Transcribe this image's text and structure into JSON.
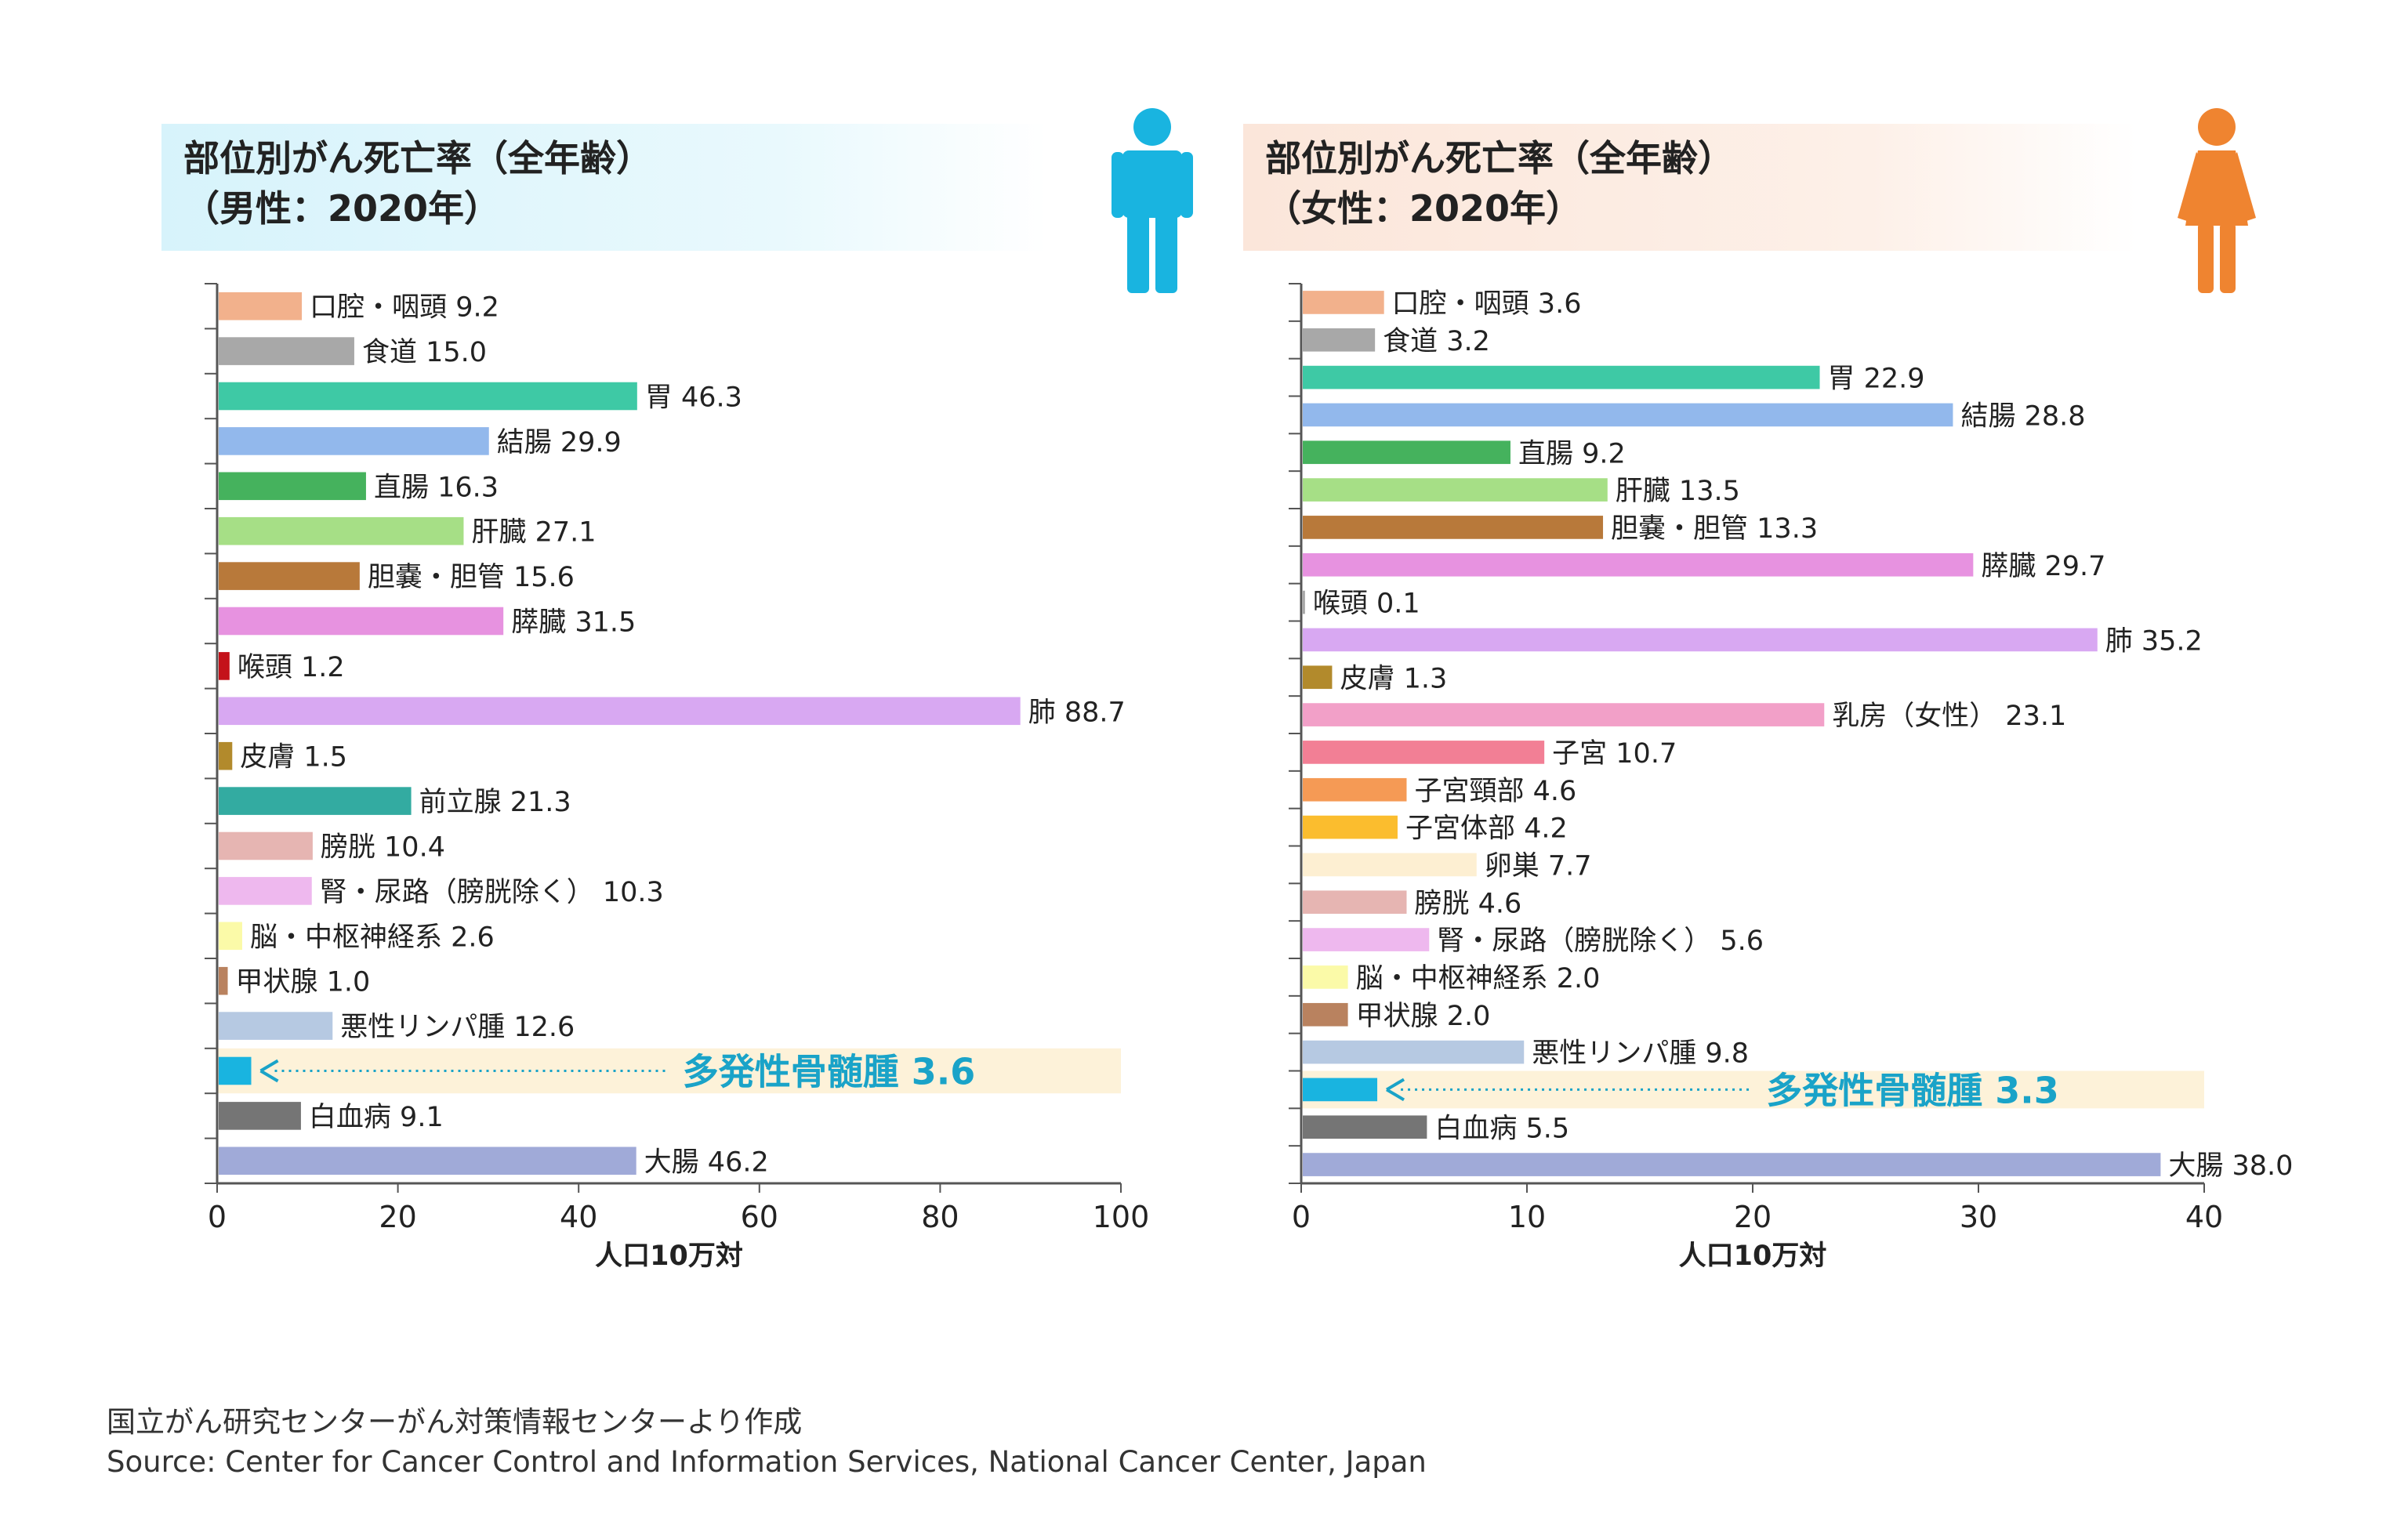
{
  "footer": {
    "source_ja": "国立がん研究センターがん対策情報センターより作成",
    "source_en": "Source: Center for Cancer Control and Information Services, National Cancer Center, Japan"
  },
  "chart_data": [
    {
      "type": "bar",
      "orientation": "horizontal",
      "title": "部位別がん死亡率（全年齢）",
      "subtitle": "（男性：2020年）",
      "xlabel": "人口10万対",
      "xlim": [
        0,
        100
      ],
      "xticks": [
        0,
        20,
        40,
        60,
        80,
        100
      ],
      "grid": false,
      "icon": "male-person-icon",
      "icon_color": "#19b4e0",
      "title_bg": "#d7f3fb",
      "highlight": {
        "category": "多発性骨髄腫",
        "value": 3.6,
        "label": "多発性骨髄腫 3.6",
        "color": "#1aa3c8",
        "band_color": "#fdf2d9"
      },
      "categories": [
        "口腔・咽頭",
        "食道",
        "胃",
        "結腸",
        "直腸",
        "肝臓",
        "胆嚢・胆管",
        "膵臓",
        "喉頭",
        "肺",
        "皮膚",
        "前立腺",
        "膀胱",
        "腎・尿路（膀胱除く）",
        "脳・中枢神経系",
        "甲状腺",
        "悪性リンパ腫",
        "多発性骨髄腫",
        "白血病",
        "大腸"
      ],
      "values": [
        9.2,
        15.0,
        46.3,
        29.9,
        16.3,
        27.1,
        15.6,
        31.5,
        1.2,
        88.7,
        1.5,
        21.3,
        10.4,
        10.3,
        2.6,
        1.0,
        12.6,
        3.6,
        9.1,
        46.2
      ],
      "labels": [
        "口腔・咽頭 9.2",
        "食道 15.0",
        "胃 46.3",
        "結腸 29.9",
        "直腸 16.3",
        "肝臓 27.1",
        "胆嚢・胆管 15.6",
        "膵臓 31.5",
        "喉頭 1.2",
        "肺 88.7",
        "皮膚 1.5",
        "前立腺 21.3",
        "膀胱 10.4",
        "腎・尿路（膀胱除く） 10.3",
        "脳・中枢神経系 2.6",
        "甲状腺 1.0",
        "悪性リンパ腫 12.6",
        "",
        "白血病 9.1",
        "大腸 46.2"
      ],
      "colors": [
        "#f2b18c",
        "#a8a8a8",
        "#3ec9a5",
        "#92b8ec",
        "#45b25d",
        "#a6df86",
        "#b8793a",
        "#e792e0",
        "#c4121a",
        "#d8a8f2",
        "#b28a2c",
        "#33aba1",
        "#e6b5b2",
        "#eeb8ee",
        "#fbfaa8",
        "#b9825f",
        "#b6c9e2",
        "#19b4e0",
        "#757575",
        "#a0aad8"
      ]
    },
    {
      "type": "bar",
      "orientation": "horizontal",
      "title": "部位別がん死亡率（全年齢）",
      "subtitle": "（女性：2020年）",
      "xlabel": "人口10万対",
      "xlim": [
        0,
        40
      ],
      "xticks": [
        0,
        10,
        20,
        30,
        40
      ],
      "grid": false,
      "icon": "female-person-icon",
      "icon_color": "#ef8430",
      "title_bg": "#fbe6da",
      "highlight": {
        "category": "多発性骨髄腫",
        "value": 3.3,
        "label": "多発性骨髄腫 3.3",
        "color": "#1aa3c8",
        "band_color": "#fdf2d9"
      },
      "categories": [
        "口腔・咽頭",
        "食道",
        "胃",
        "結腸",
        "直腸",
        "肝臓",
        "胆嚢・胆管",
        "膵臓",
        "喉頭",
        "肺",
        "皮膚",
        "乳房（女性）",
        "子宮",
        "子宮頸部",
        "子宮体部",
        "卵巣",
        "膀胱",
        "腎・尿路（膀胱除く）",
        "脳・中枢神経系",
        "甲状腺",
        "悪性リンパ腫",
        "多発性骨髄腫",
        "白血病",
        "大腸"
      ],
      "values": [
        3.6,
        3.2,
        22.9,
        28.8,
        9.2,
        13.5,
        13.3,
        29.7,
        0.1,
        35.2,
        1.3,
        23.1,
        10.7,
        4.6,
        4.2,
        7.7,
        4.6,
        5.6,
        2.0,
        2.0,
        9.8,
        3.3,
        5.5,
        38.0
      ],
      "labels": [
        "口腔・咽頭 3.6",
        "食道 3.2",
        "胃 22.9",
        "結腸 28.8",
        "直腸 9.2",
        "肝臓 13.5",
        "胆嚢・胆管 13.3",
        "膵臓 29.7",
        "喉頭 0.1",
        "肺 35.2",
        "皮膚 1.3",
        "乳房（女性） 23.1",
        "子宮 10.7",
        "子宮頸部 4.6",
        "子宮体部 4.2",
        "卵巣 7.7",
        "膀胱 4.6",
        "腎・尿路（膀胱除く） 5.6",
        "脳・中枢神経系 2.0",
        "甲状腺 2.0",
        "悪性リンパ腫 9.8",
        "",
        "白血病 5.5",
        "大腸 38.0"
      ],
      "colors": [
        "#f2b18c",
        "#a8a8a8",
        "#3ec9a5",
        "#92b8ec",
        "#45b25d",
        "#a6df86",
        "#b8793a",
        "#e792e0",
        "#a8a8a8",
        "#d8a8f2",
        "#b28a2c",
        "#f2a0c8",
        "#f27f95",
        "#f59a55",
        "#fbbd2e",
        "#fdefd2",
        "#e6b5b2",
        "#eeb8ee",
        "#fbfaa8",
        "#b9825f",
        "#b6c9e2",
        "#19b4e0",
        "#757575",
        "#a0aad8"
      ]
    }
  ]
}
